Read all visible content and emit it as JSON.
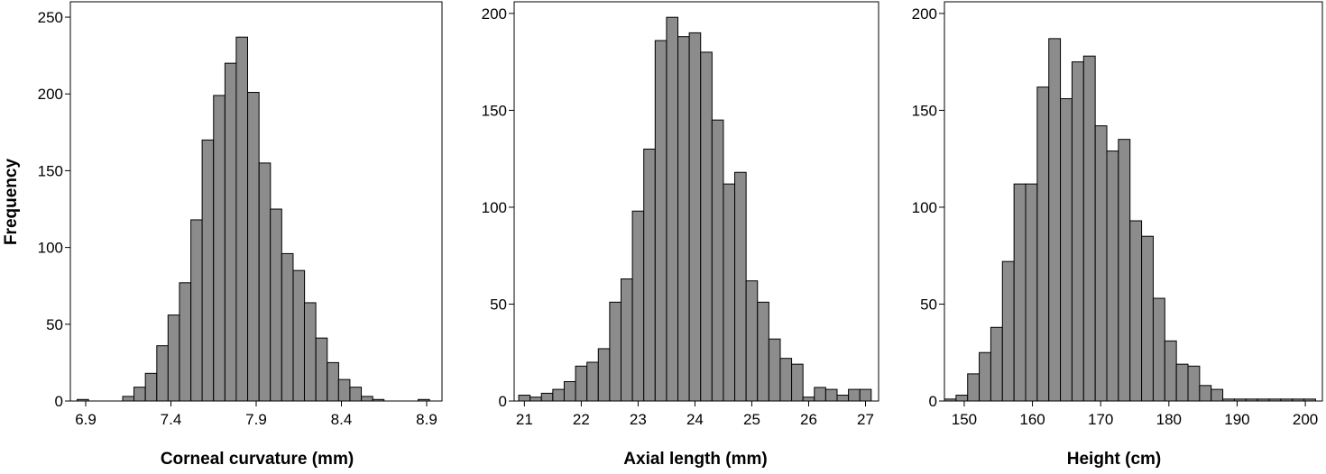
{
  "colors": {
    "bar_fill": "#8c8c8c",
    "bar_stroke": "#000000",
    "frame": "#000000",
    "background": "#ffffff"
  },
  "chart_data": [
    {
      "type": "bar",
      "subtype": "histogram",
      "xlabel": "Corneal curvature (mm)",
      "ylabel": "Frequency",
      "xlim": [
        6.81,
        8.99
      ],
      "ylim": [
        0,
        260
      ],
      "xticks": [
        6.9,
        7.4,
        7.9,
        8.4,
        8.9
      ],
      "yticks": [
        0,
        50,
        100,
        150,
        200,
        250
      ],
      "bin_width": 0.0667,
      "bins_start": [
        6.85,
        7.117,
        7.183,
        7.25,
        7.317,
        7.383,
        7.45,
        7.517,
        7.583,
        7.65,
        7.717,
        7.783,
        7.85,
        7.917,
        7.983,
        8.05,
        8.117,
        8.183,
        8.25,
        8.317,
        8.383,
        8.45,
        8.517,
        8.583,
        8.85
      ],
      "values": [
        1,
        3,
        9,
        18,
        36,
        56,
        77,
        118,
        170,
        199,
        220,
        237,
        201,
        155,
        125,
        96,
        85,
        64,
        41,
        25,
        14,
        9,
        3,
        1,
        1
      ],
      "grid": false
    },
    {
      "type": "bar",
      "subtype": "histogram",
      "xlabel": "Axial length (mm)",
      "ylabel": "",
      "xlim": [
        20.82,
        27.23
      ],
      "ylim": [
        0,
        206
      ],
      "xticks": [
        21,
        22,
        23,
        24,
        25,
        26,
        27
      ],
      "yticks": [
        0,
        50,
        100,
        150,
        200
      ],
      "bin_width": 0.2,
      "bins_start": [
        20.9,
        21.1,
        21.3,
        21.5,
        21.7,
        21.9,
        22.1,
        22.3,
        22.5,
        22.7,
        22.9,
        23.1,
        23.3,
        23.5,
        23.7,
        23.9,
        24.1,
        24.3,
        24.5,
        24.7,
        24.9,
        25.1,
        25.3,
        25.5,
        25.7,
        25.9,
        26.1,
        26.3,
        26.5,
        26.7,
        26.9
      ],
      "values": [
        3,
        2,
        4,
        6,
        10,
        18,
        20,
        27,
        51,
        63,
        98,
        130,
        186,
        198,
        188,
        190,
        180,
        145,
        112,
        118,
        62,
        51,
        32,
        22,
        19,
        2,
        7,
        6,
        3,
        6,
        6
      ],
      "grid": false
    },
    {
      "type": "bar",
      "subtype": "histogram",
      "xlabel": "Height (cm)",
      "ylabel": "",
      "xlim": [
        147.1,
        202.5
      ],
      "ylim": [
        0,
        206
      ],
      "xticks": [
        150,
        160,
        170,
        180,
        190,
        200
      ],
      "yticks": [
        0,
        50,
        100,
        150,
        200
      ],
      "bin_width": 1.7,
      "bins_start": [
        147.1,
        148.8,
        150.5,
        152.2,
        153.9,
        155.6,
        157.3,
        159.0,
        160.7,
        162.4,
        164.1,
        165.8,
        167.5,
        169.2,
        170.9,
        172.6,
        174.3,
        176.0,
        177.7,
        179.4,
        181.1,
        182.8,
        184.5,
        186.2,
        187.9,
        189.6,
        191.3,
        193.0,
        194.7,
        196.4,
        198.1,
        199.8
      ],
      "values": [
        1,
        3,
        14,
        25,
        38,
        72,
        112,
        112,
        162,
        187,
        156,
        175,
        178,
        142,
        129,
        135,
        93,
        85,
        53,
        31,
        19,
        18,
        8,
        6,
        1,
        1,
        1,
        1,
        1,
        1,
        1,
        1
      ],
      "grid": false
    }
  ]
}
